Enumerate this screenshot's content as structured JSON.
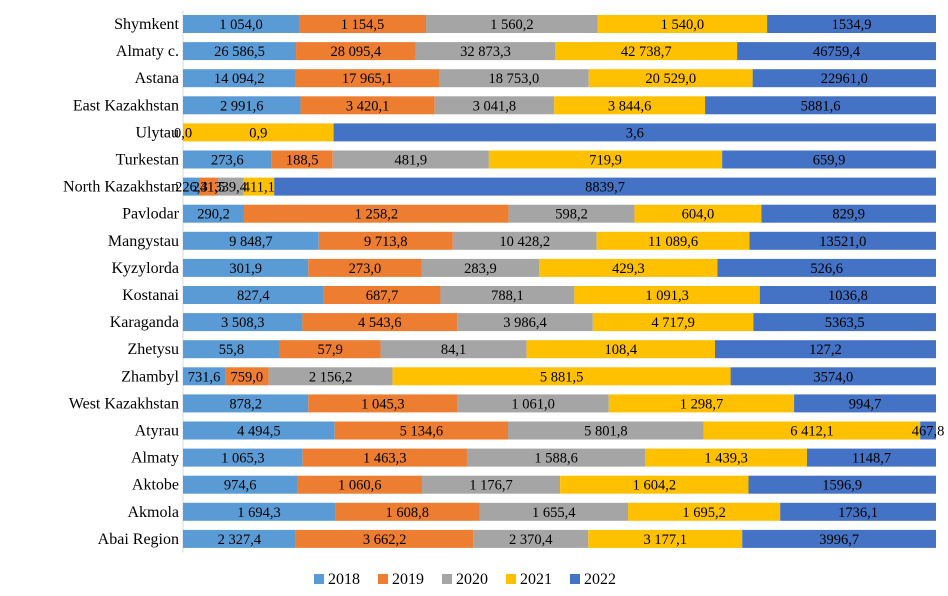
{
  "chart_data": {
    "type": "bar",
    "orientation": "horizontal",
    "stacked": "percent",
    "title": "",
    "xlabel": "",
    "ylabel": "",
    "grid": false,
    "legend_position": "bottom",
    "categories": [
      "Shymkent",
      "Almaty c.",
      "Astana",
      "East Kazakhstan",
      "Ulytau",
      "Turkestan",
      "North Kazakhstan",
      "Pavlodar",
      "Mangystau",
      "Kyzylorda",
      "Kostanai",
      "Karaganda",
      "Zhetysu",
      "Zhambyl",
      "West Kazakhstan",
      "Atyrau",
      "Almaty",
      "Aktobe",
      "Akmola",
      "Abai Region"
    ],
    "series": [
      {
        "name": "2018",
        "color": "#5B9BD5",
        "values": [
          1054.0,
          26586.5,
          14094.2,
          2991.6,
          0.0,
          273.6,
          226.3,
          290.2,
          9848.7,
          301.9,
          827.4,
          3508.3,
          55.8,
          731.6,
          878.2,
          4494.5,
          1065.3,
          974.6,
          1694.3,
          2327.4
        ],
        "labels": [
          "1 054,0",
          "26 586,5",
          "14 094,2",
          "2 991,6",
          "0,0",
          "273,6",
          "226,3",
          "290,2",
          "9 848,7",
          "301,9",
          "827,4",
          "3 508,3",
          "55,8",
          "731,6",
          "878,2",
          "4 494,5",
          "1 065,3",
          "974,6",
          "1 694,3",
          "2 327,4"
        ]
      },
      {
        "name": "2019",
        "color": "#ED7D31",
        "values": [
          1154.5,
          28095.4,
          17965.1,
          3420.1,
          0.0,
          188.5,
          241.5,
          1258.2,
          9713.8,
          273.0,
          687.7,
          4543.6,
          57.9,
          759.0,
          1045.3,
          5134.6,
          1463.3,
          1060.6,
          1608.8,
          3662.2
        ],
        "labels": [
          "1 154,5",
          "28 095,4",
          "17 965,1",
          "3 420,1",
          "",
          "188,5",
          "241,5",
          "1 258,2",
          "9 713,8",
          "273,0",
          "687,7",
          "4 543,6",
          "57,9",
          "759,0",
          "1 045,3",
          "5 134,6",
          "1 463,3",
          "1 060,6",
          "1 608,8",
          "3 662,2"
        ]
      },
      {
        "name": "2020",
        "color": "#A5A5A5",
        "values": [
          1560.2,
          32873.3,
          18753.0,
          3041.8,
          0.0,
          481.9,
          339.4,
          598.2,
          10428.2,
          283.9,
          788.1,
          3986.4,
          84.1,
          2156.2,
          1061.0,
          5801.8,
          1588.6,
          1176.7,
          1655.4,
          2370.4
        ],
        "labels": [
          "1 560,2",
          "32 873,3",
          "18 753,0",
          "3 041,8",
          "",
          "481,9",
          "339,4",
          "598,2",
          "10 428,2",
          "283,9",
          "788,1",
          "3 986,4",
          "84,1",
          "2 156,2",
          "1 061,0",
          "5 801,8",
          "1 588,6",
          "1 176,7",
          "1 655,4",
          "2 370,4"
        ]
      },
      {
        "name": "2021",
        "color": "#FFC000",
        "values": [
          1540.0,
          42738.7,
          20529.0,
          3844.6,
          0.9,
          719.9,
          411.1,
          604.0,
          11089.6,
          429.3,
          1091.3,
          4717.9,
          108.4,
          5881.5,
          1298.7,
          6412.1,
          1439.3,
          1604.2,
          1695.2,
          3177.1
        ],
        "labels": [
          "1 540,0",
          "42 738,7",
          "20 529,0",
          "3 844,6",
          "0,9",
          "719,9",
          "411,1",
          "604,0",
          "11 089,6",
          "429,3",
          "1 091,3",
          "4 717,9",
          "108,4",
          "5 881,5",
          "1 298,7",
          "6 412,1",
          "1 439,3",
          "1 604,2",
          "1 695,2",
          "3 177,1"
        ]
      },
      {
        "name": "2022",
        "color": "#4472C4",
        "values": [
          1534.9,
          46759.4,
          22961.0,
          5881.6,
          3.6,
          659.9,
          8839.7,
          829.9,
          13521.0,
          526.6,
          1036.8,
          5363.5,
          127.2,
          3574.0,
          994.7,
          467.8,
          1148.7,
          1596.9,
          1736.1,
          3996.7
        ],
        "labels": [
          "1534,9",
          "46759,4",
          "22961,0",
          "5881,6",
          "3,6",
          "659,9",
          "8839,7",
          "829,9",
          "13521,0",
          "526,6",
          "1036,8",
          "5363,5",
          "127,2",
          "3574,0",
          "994,7",
          "467,8",
          "1148,7",
          "1596,9",
          "1736,1",
          "3996,7"
        ]
      }
    ]
  }
}
